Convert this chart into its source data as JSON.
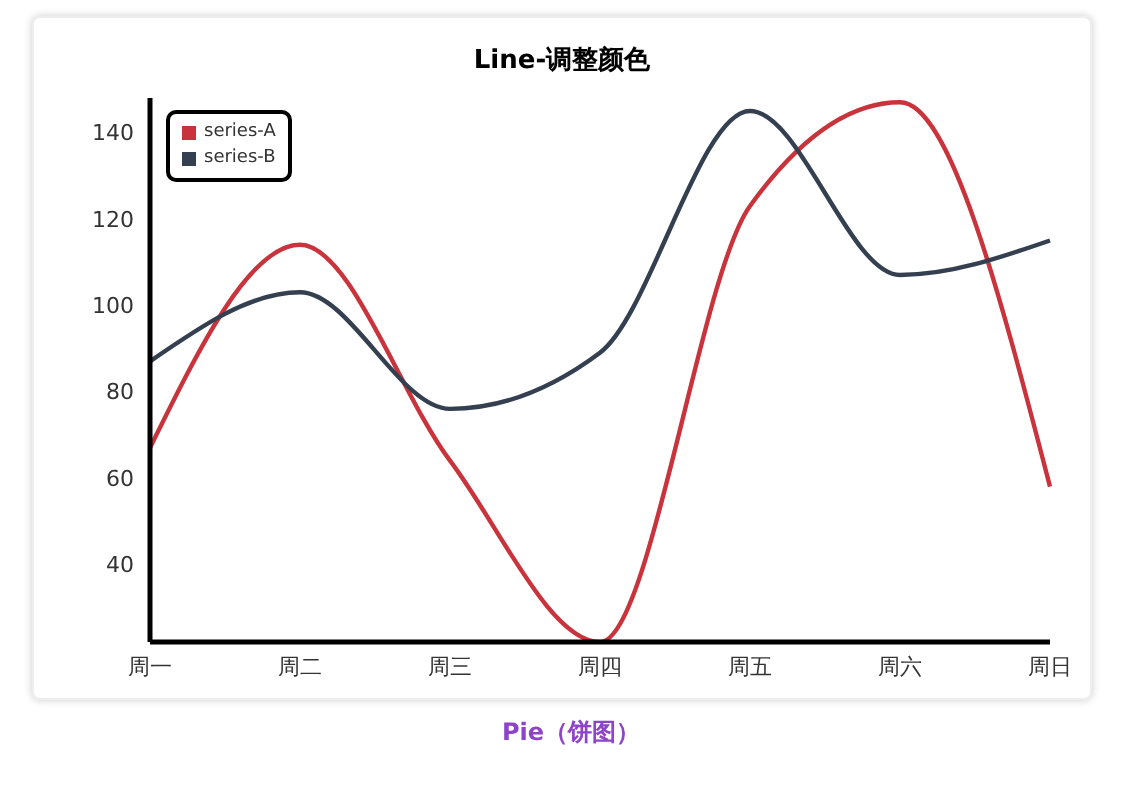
{
  "chart_data": {
    "type": "line",
    "title": "Line-调整颜色",
    "categories": [
      "周一",
      "周二",
      "周三",
      "周四",
      "周五",
      "周六",
      "周日"
    ],
    "series": [
      {
        "name": "series-A",
        "color": "#c9333b",
        "values": [
          67,
          114,
          64,
          22,
          123,
          147,
          58
        ]
      },
      {
        "name": "series-B",
        "color": "#34404f",
        "values": [
          87,
          103,
          76,
          89,
          145,
          107,
          115
        ]
      }
    ],
    "ylim": [
      22,
      148
    ],
    "yticks": [
      40,
      60,
      80,
      100,
      120,
      140
    ],
    "grid": false,
    "legend": "top left",
    "marker": "none",
    "line_style": "solid",
    "annotations": [
      "Pie（饼图）"
    ]
  }
}
